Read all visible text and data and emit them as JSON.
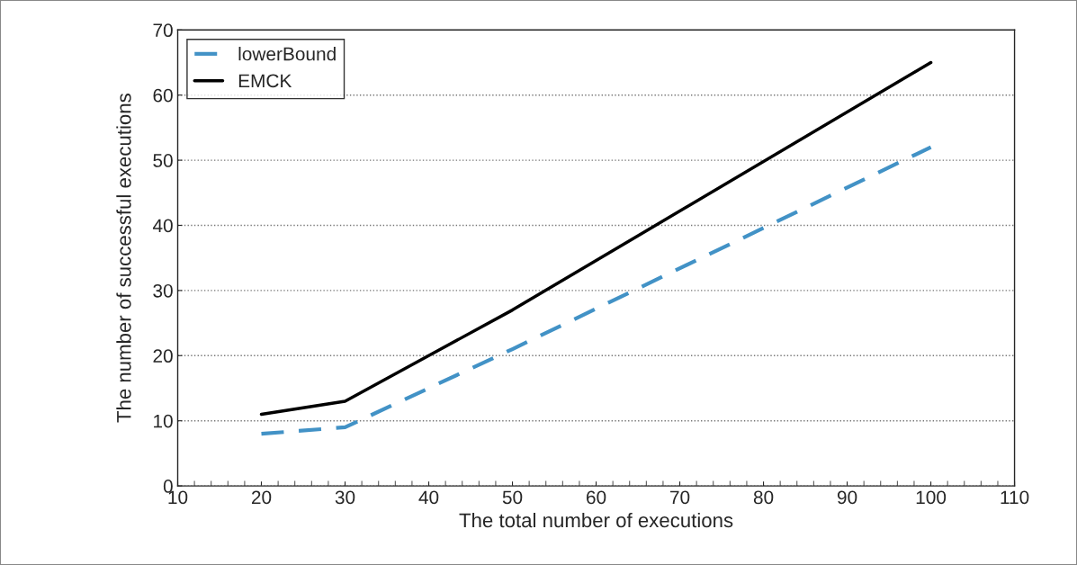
{
  "chart_data": {
    "type": "line",
    "xlabel": "The total number of executions",
    "ylabel": "The number of successful executions",
    "x": [
      20,
      30,
      40,
      50,
      100
    ],
    "series": [
      {
        "name": "lowerBound",
        "color": "#4292c6",
        "line_style": "dashed",
        "values": [
          8,
          9,
          15,
          21,
          52
        ]
      },
      {
        "name": "EMCK",
        "color": "#000000",
        "line_style": "solid",
        "values": [
          11,
          13,
          20,
          27,
          65
        ]
      }
    ],
    "xlim": [
      10,
      110
    ],
    "xticks": [
      10,
      20,
      30,
      40,
      50,
      60,
      70,
      80,
      90,
      100,
      110
    ],
    "ylim": [
      0,
      70
    ],
    "yticks": [
      0,
      10,
      20,
      30,
      40,
      50,
      60,
      70
    ],
    "grid": "y",
    "legend": "top left",
    "marker": "none"
  }
}
